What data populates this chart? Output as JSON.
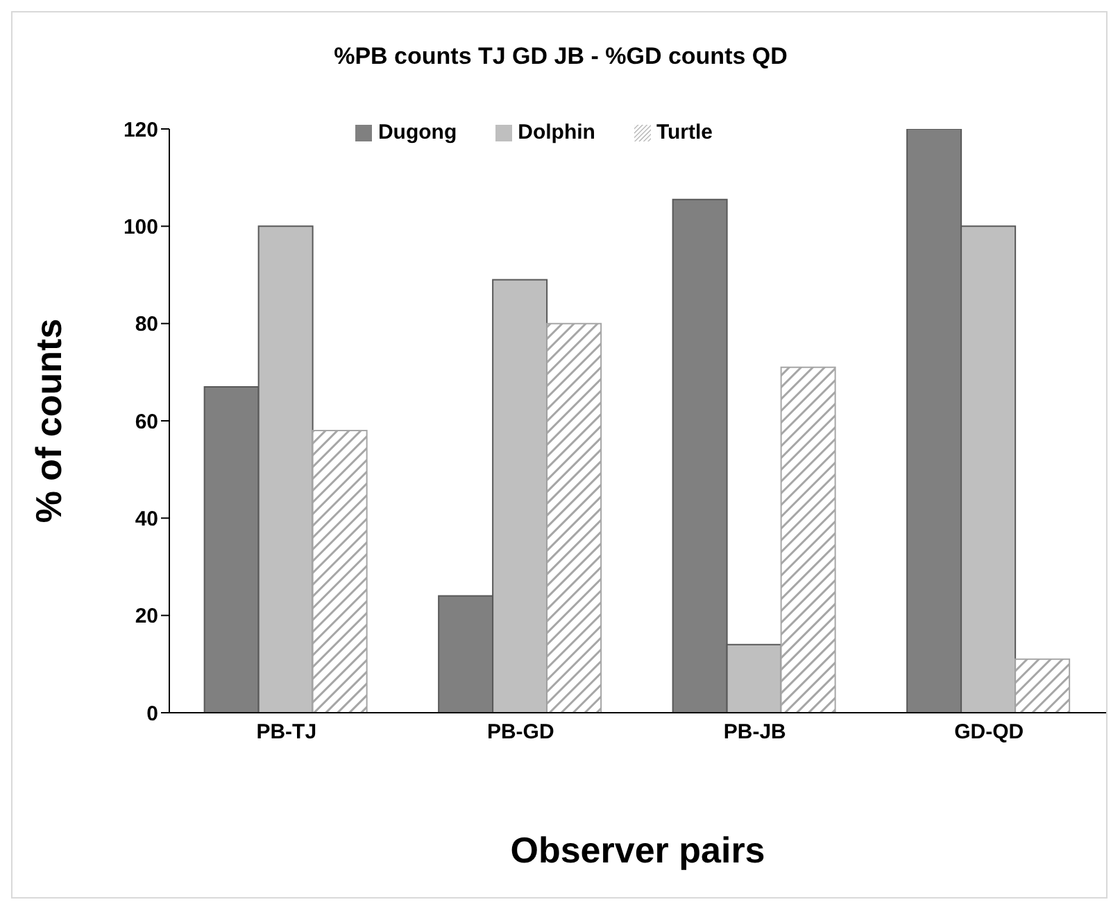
{
  "chart_data": {
    "type": "bar",
    "title": "%PB counts TJ GD JB - %GD counts QD",
    "xlabel": "Observer pairs",
    "ylabel": "% of counts",
    "categories": [
      "PB-TJ",
      "PB-GD",
      "PB-JB",
      "GD-QD"
    ],
    "series": [
      {
        "name": "Dugong",
        "color": "#808080",
        "values": [
          67,
          24,
          105.5,
          120
        ]
      },
      {
        "name": "Dolphin",
        "color": "#bfbfbf",
        "values": [
          100,
          89,
          14,
          100
        ]
      },
      {
        "name": "Turtle",
        "color": "#a6a6a6",
        "values": [
          58,
          80,
          71,
          11
        ]
      }
    ],
    "ylim": [
      0,
      120
    ],
    "yticks": [
      0,
      20,
      40,
      60,
      80,
      100,
      120
    ],
    "grid": false,
    "legend": "top"
  }
}
